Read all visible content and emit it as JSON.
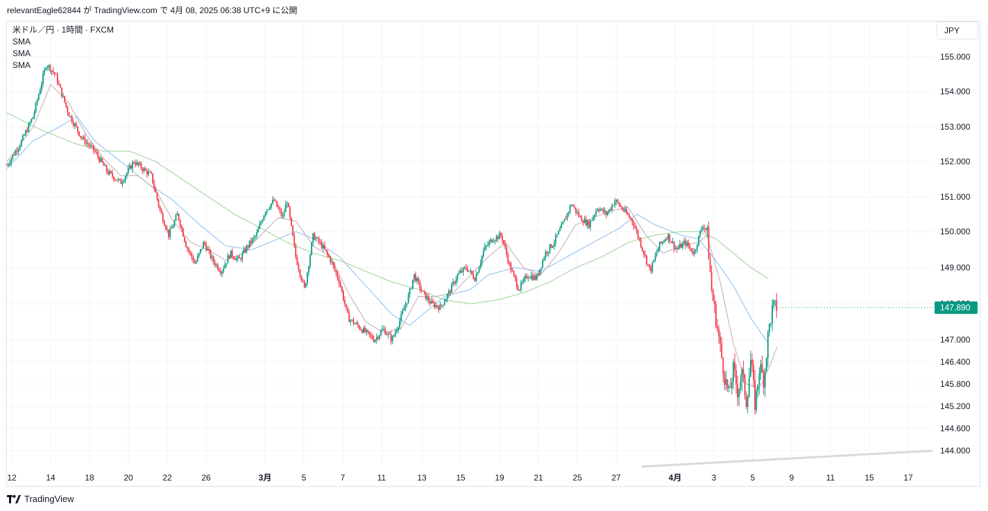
{
  "header": {
    "text": "relevantEagle62844 が TradingView.com で 4月 08, 2025 06:38 UTC+9 に公開"
  },
  "legend": {
    "title": "米ドル／円 · 1時間 · FXCM",
    "indicators": [
      "SMA",
      "SMA",
      "SMA"
    ]
  },
  "currency_button": {
    "label": "JPY"
  },
  "footer": {
    "brand": "TradingView",
    "icon": "tradingview-logo-icon"
  },
  "colors": {
    "up": "#089981",
    "down": "#f23645",
    "sma_fast": "#c7b8bb",
    "sma_mid": "#9cc7f0",
    "sma_slow": "#a8d8a0",
    "price_label_bg": "#089981",
    "trendline": "#d9d9d9"
  },
  "chart_data": {
    "type": "line",
    "symbol": "USD/JPY",
    "timeframe": "1時間",
    "y_axis_ticks": [
      "155.000",
      "154.000",
      "153.000",
      "152.000",
      "151.000",
      "150.000",
      "149.000",
      "148.000",
      "147.000",
      "146.400",
      "145.800",
      "145.200",
      "144.600",
      "144.000"
    ],
    "x_axis_ticks": [
      {
        "label": "12",
        "bold": false
      },
      {
        "label": "14",
        "bold": false
      },
      {
        "label": "18",
        "bold": false
      },
      {
        "label": "20",
        "bold": false
      },
      {
        "label": "22",
        "bold": false
      },
      {
        "label": "26",
        "bold": false
      },
      {
        "label": "3月",
        "bold": true
      },
      {
        "label": "5",
        "bold": false
      },
      {
        "label": "7",
        "bold": false
      },
      {
        "label": "11",
        "bold": false
      },
      {
        "label": "13",
        "bold": false
      },
      {
        "label": "15",
        "bold": false
      },
      {
        "label": "19",
        "bold": false
      },
      {
        "label": "21",
        "bold": false
      },
      {
        "label": "25",
        "bold": false
      },
      {
        "label": "27",
        "bold": false
      },
      {
        "label": "4月",
        "bold": true
      },
      {
        "label": "3",
        "bold": false
      },
      {
        "label": "5",
        "bold": false
      },
      {
        "label": "9",
        "bold": false
      },
      {
        "label": "11",
        "bold": false
      },
      {
        "label": "15",
        "bold": false
      },
      {
        "label": "17",
        "bold": false
      }
    ],
    "last_price": "147.890",
    "price_path": [
      [
        0,
        151.9
      ],
      [
        3,
        152.5
      ],
      [
        6,
        153.3
      ],
      [
        9,
        154.8
      ],
      [
        11,
        154.5
      ],
      [
        14,
        153.4
      ],
      [
        17,
        152.7
      ],
      [
        20,
        152.3
      ],
      [
        23,
        151.7
      ],
      [
        26,
        151.4
      ],
      [
        29,
        152.0
      ],
      [
        31,
        151.8
      ],
      [
        33,
        151.6
      ],
      [
        35,
        150.6
      ],
      [
        37,
        149.9
      ],
      [
        39,
        150.5
      ],
      [
        41,
        149.6
      ],
      [
        43,
        149.1
      ],
      [
        45,
        149.7
      ],
      [
        47,
        149.2
      ],
      [
        49,
        148.9
      ],
      [
        51,
        149.4
      ],
      [
        53,
        149.2
      ],
      [
        55,
        149.6
      ],
      [
        57,
        149.9
      ],
      [
        59,
        150.6
      ],
      [
        61,
        150.9
      ],
      [
        63,
        150.4
      ],
      [
        64,
        150.9
      ],
      [
        66,
        149.3
      ],
      [
        68,
        148.4
      ],
      [
        70,
        149.9
      ],
      [
        72,
        149.6
      ],
      [
        74,
        149.2
      ],
      [
        76,
        148.6
      ],
      [
        78,
        147.6
      ],
      [
        80,
        147.4
      ],
      [
        82,
        147.2
      ],
      [
        84,
        147.0
      ],
      [
        86,
        147.3
      ],
      [
        88,
        147.0
      ],
      [
        90,
        147.6
      ],
      [
        92,
        148.3
      ],
      [
        93,
        148.8
      ],
      [
        95,
        148.3
      ],
      [
        97,
        148.0
      ],
      [
        99,
        147.9
      ],
      [
        101,
        148.3
      ],
      [
        103,
        148.8
      ],
      [
        105,
        149.0
      ],
      [
        107,
        148.7
      ],
      [
        109,
        149.5
      ],
      [
        111,
        149.8
      ],
      [
        113,
        149.9
      ],
      [
        115,
        149.0
      ],
      [
        117,
        148.4
      ],
      [
        119,
        148.8
      ],
      [
        121,
        148.7
      ],
      [
        123,
        149.4
      ],
      [
        125,
        149.7
      ],
      [
        127,
        150.2
      ],
      [
        129,
        150.8
      ],
      [
        131,
        150.4
      ],
      [
        133,
        150.2
      ],
      [
        135,
        150.7
      ],
      [
        137,
        150.5
      ],
      [
        139,
        150.9
      ],
      [
        141,
        150.6
      ],
      [
        143,
        150.3
      ],
      [
        145,
        149.6
      ],
      [
        147,
        148.9
      ],
      [
        149,
        149.6
      ],
      [
        151,
        149.9
      ],
      [
        153,
        149.5
      ],
      [
        155,
        149.7
      ],
      [
        157,
        149.4
      ],
      [
        159,
        150.2
      ],
      [
        160,
        150.0
      ],
      [
        161,
        148.4
      ],
      [
        162,
        147.6
      ],
      [
        163,
        146.8
      ],
      [
        164,
        146.0
      ],
      [
        165,
        145.5
      ],
      [
        166,
        146.2
      ],
      [
        167,
        145.6
      ],
      [
        168,
        146.1
      ],
      [
        169,
        145.3
      ],
      [
        170,
        146.5
      ],
      [
        171,
        145.2
      ],
      [
        172,
        146.3
      ],
      [
        173,
        145.9
      ],
      [
        174,
        147.2
      ],
      [
        175,
        147.9
      ],
      [
        176,
        147.9
      ]
    ],
    "sma_fast": [
      [
        0,
        152.0
      ],
      [
        6,
        153.0
      ],
      [
        10,
        154.2
      ],
      [
        14,
        153.7
      ],
      [
        18,
        152.8
      ],
      [
        22,
        152.1
      ],
      [
        26,
        151.6
      ],
      [
        30,
        151.6
      ],
      [
        34,
        151.2
      ],
      [
        38,
        150.3
      ],
      [
        42,
        149.7
      ],
      [
        46,
        149.5
      ],
      [
        50,
        149.2
      ],
      [
        54,
        149.4
      ],
      [
        58,
        149.9
      ],
      [
        62,
        150.4
      ],
      [
        66,
        150.3
      ],
      [
        70,
        149.6
      ],
      [
        74,
        149.3
      ],
      [
        78,
        148.3
      ],
      [
        82,
        147.5
      ],
      [
        86,
        147.2
      ],
      [
        90,
        147.3
      ],
      [
        94,
        148.2
      ],
      [
        98,
        148.2
      ],
      [
        102,
        148.3
      ],
      [
        106,
        148.8
      ],
      [
        110,
        149.3
      ],
      [
        114,
        149.7
      ],
      [
        118,
        149.0
      ],
      [
        122,
        148.8
      ],
      [
        126,
        149.4
      ],
      [
        130,
        150.2
      ],
      [
        134,
        150.4
      ],
      [
        138,
        150.6
      ],
      [
        142,
        150.7
      ],
      [
        146,
        149.9
      ],
      [
        150,
        149.4
      ],
      [
        154,
        149.6
      ],
      [
        158,
        149.7
      ],
      [
        160,
        149.9
      ],
      [
        163,
        148.6
      ],
      [
        166,
        146.9
      ],
      [
        169,
        145.8
      ],
      [
        172,
        145.7
      ],
      [
        174,
        146.2
      ],
      [
        176,
        146.8
      ]
    ],
    "sma_mid": [
      [
        0,
        151.8
      ],
      [
        6,
        152.6
      ],
      [
        12,
        153.0
      ],
      [
        16,
        153.3
      ],
      [
        20,
        152.6
      ],
      [
        26,
        152.0
      ],
      [
        32,
        151.4
      ],
      [
        38,
        150.9
      ],
      [
        44,
        150.2
      ],
      [
        50,
        149.6
      ],
      [
        56,
        149.5
      ],
      [
        62,
        149.8
      ],
      [
        66,
        150.0
      ],
      [
        70,
        149.8
      ],
      [
        76,
        149.3
      ],
      [
        82,
        148.5
      ],
      [
        88,
        147.7
      ],
      [
        92,
        147.4
      ],
      [
        96,
        147.8
      ],
      [
        100,
        148.2
      ],
      [
        106,
        148.4
      ],
      [
        110,
        148.8
      ],
      [
        116,
        149.0
      ],
      [
        122,
        148.9
      ],
      [
        128,
        149.3
      ],
      [
        134,
        149.7
      ],
      [
        140,
        150.1
      ],
      [
        144,
        150.5
      ],
      [
        148,
        150.2
      ],
      [
        154,
        149.9
      ],
      [
        158,
        149.8
      ],
      [
        162,
        149.2
      ],
      [
        166,
        148.5
      ],
      [
        170,
        147.6
      ],
      [
        174,
        146.9
      ]
    ],
    "sma_slow": [
      [
        0,
        153.4
      ],
      [
        8,
        152.9
      ],
      [
        16,
        152.5
      ],
      [
        22,
        152.3
      ],
      [
        28,
        152.3
      ],
      [
        34,
        152.0
      ],
      [
        40,
        151.5
      ],
      [
        46,
        151.0
      ],
      [
        52,
        150.5
      ],
      [
        58,
        150.1
      ],
      [
        64,
        149.7
      ],
      [
        70,
        149.4
      ],
      [
        76,
        149.2
      ],
      [
        82,
        148.9
      ],
      [
        88,
        148.6
      ],
      [
        94,
        148.4
      ],
      [
        100,
        148.1
      ],
      [
        106,
        148.0
      ],
      [
        112,
        148.1
      ],
      [
        118,
        148.3
      ],
      [
        124,
        148.6
      ],
      [
        130,
        149.0
      ],
      [
        136,
        149.3
      ],
      [
        142,
        149.7
      ],
      [
        148,
        149.9
      ],
      [
        154,
        150.0
      ],
      [
        158,
        150.0
      ],
      [
        162,
        149.8
      ],
      [
        166,
        149.4
      ],
      [
        170,
        149.0
      ],
      [
        174,
        148.7
      ]
    ]
  }
}
